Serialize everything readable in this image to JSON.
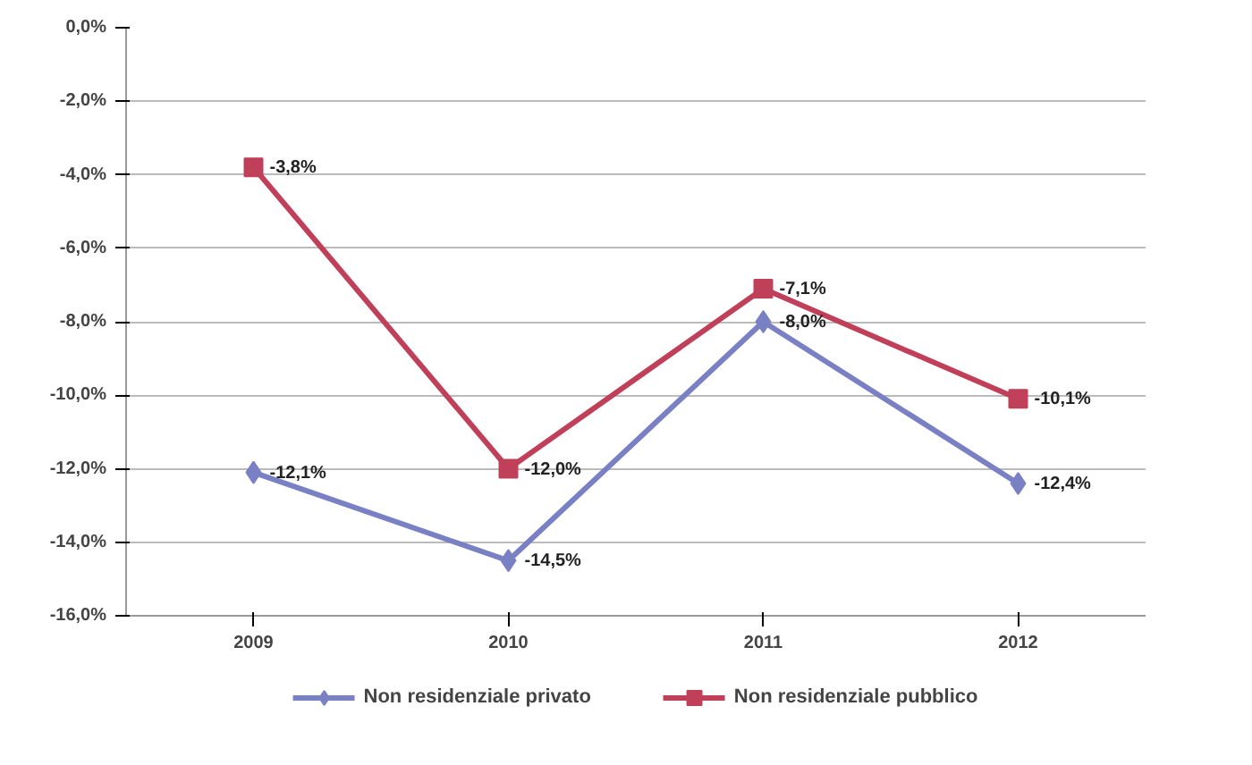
{
  "chart_data": {
    "type": "line",
    "categories": [
      "2009",
      "2010",
      "2011",
      "2012"
    ],
    "ylim": [
      -16,
      0
    ],
    "yticks": [
      {
        "value": 0,
        "label": "0,0%"
      },
      {
        "value": -2,
        "label": "-2,0%"
      },
      {
        "value": -4,
        "label": "-4,0%"
      },
      {
        "value": -6,
        "label": "-6,0%"
      },
      {
        "value": -8,
        "label": "-8,0%"
      },
      {
        "value": -10,
        "label": "-10,0%"
      },
      {
        "value": -12,
        "label": "-12,0%"
      },
      {
        "value": -14,
        "label": "-14,0%"
      },
      {
        "value": -16,
        "label": "-16,0%"
      }
    ],
    "grid": "y",
    "legend": "bottom",
    "line_style": "solid",
    "series": [
      {
        "name": "Non residenziale privato",
        "color": "#7a80c4",
        "marker": "diamond",
        "values": [
          -12.1,
          -14.5,
          -8.0,
          -12.4
        ],
        "value_labels": [
          "-12,1%",
          "-14,5%",
          "-8,0%",
          "-12,4%"
        ]
      },
      {
        "name": "Non residenziale pubblico",
        "color": "#c0405a",
        "marker": "square",
        "values": [
          -3.8,
          -12.0,
          -7.1,
          -10.1
        ],
        "value_labels": [
          "-3,8%",
          "-12,0%",
          "-7,1%",
          "-10,1%"
        ]
      }
    ]
  }
}
